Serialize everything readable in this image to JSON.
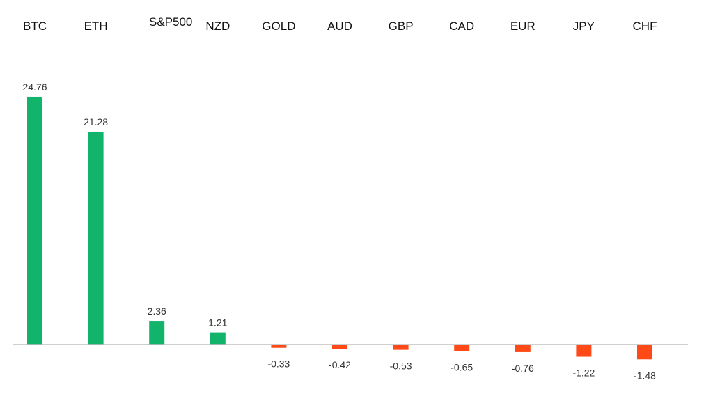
{
  "chart_data": {
    "type": "bar",
    "categories": [
      "BTC",
      "ETH",
      "S&P500",
      "NZD",
      "GOLD",
      "AUD",
      "GBP",
      "CAD",
      "EUR",
      "JPY",
      "CHF"
    ],
    "values": [
      24.76,
      21.28,
      2.36,
      1.21,
      -0.33,
      -0.42,
      -0.53,
      -0.65,
      -0.76,
      -1.22,
      -1.48
    ],
    "value_labels": [
      "24.76",
      "21.28",
      "2.36",
      "1.21",
      "-0.33",
      "-0.42",
      "-0.53",
      "-0.65",
      "-0.76",
      "-1.22",
      "-1.48"
    ],
    "ylim": [
      -2,
      26
    ],
    "category_labels_position": "top",
    "grid": false,
    "legend": "none",
    "colors": {
      "positive": "#12b36b",
      "negative": "#ff4a17",
      "axis": "#bfbfbf"
    }
  }
}
